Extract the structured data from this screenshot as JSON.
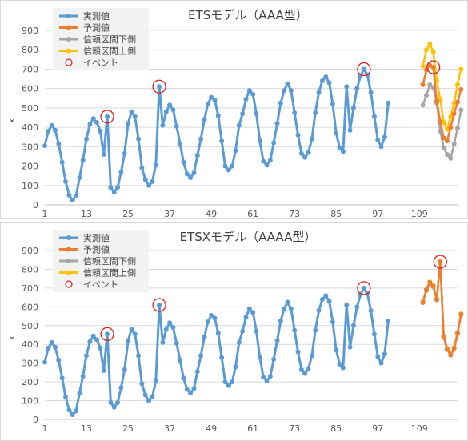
{
  "colors": {
    "actual": "#5b9bd5",
    "forecast": "#ed7d31",
    "lower": "#a5a5a5",
    "upper": "#ffc000",
    "event": "#e02020"
  },
  "legend_labels": [
    "実測値",
    "予測値",
    "信頼区間下側",
    "信頼区間上側",
    "イベント"
  ],
  "chart_data": [
    {
      "type": "line",
      "title": "ETSモデル（AAA型）",
      "xlabel": "",
      "ylabel": "x",
      "ylim": [
        0,
        900
      ],
      "yticks": [
        0,
        100,
        200,
        300,
        400,
        500,
        600,
        700,
        800,
        900
      ],
      "xticks": [
        1,
        13,
        25,
        37,
        49,
        61,
        73,
        85,
        97,
        109
      ],
      "xlim": [
        1,
        120
      ],
      "grid": true,
      "legend": "top-left",
      "series": [
        {
          "name": "実測値",
          "x_start": 1,
          "values": [
            305,
            380,
            410,
            385,
            315,
            220,
            120,
            50,
            25,
            45,
            140,
            230,
            340,
            415,
            445,
            425,
            380,
            260,
            455,
            90,
            65,
            90,
            170,
            265,
            420,
            480,
            455,
            340,
            190,
            130,
            100,
            120,
            205,
            610,
            410,
            480,
            515,
            490,
            405,
            315,
            220,
            160,
            140,
            165,
            255,
            340,
            440,
            520,
            555,
            540,
            460,
            330,
            200,
            180,
            200,
            280,
            410,
            470,
            545,
            590,
            570,
            470,
            330,
            225,
            205,
            230,
            320,
            420,
            525,
            590,
            625,
            590,
            475,
            360,
            265,
            245,
            270,
            340,
            475,
            580,
            640,
            660,
            630,
            520,
            370,
            295,
            275,
            610,
            385,
            500,
            600,
            665,
            700,
            670,
            580,
            455,
            335,
            300,
            350,
            525
          ]
        },
        {
          "name": "予測値",
          "x_start": 110,
          "values": [
            620,
            695,
            720,
            710,
            535,
            430,
            345,
            330,
            400,
            470,
            530,
            595
          ]
        },
        {
          "name": "信頼区間下側",
          "x_start": 110,
          "values": [
            515,
            565,
            620,
            605,
            525,
            380,
            295,
            260,
            240,
            315,
            395,
            490
          ]
        },
        {
          "name": "信頼区間上側",
          "x_start": 110,
          "values": [
            715,
            800,
            830,
            790,
            640,
            545,
            425,
            390,
            455,
            525,
            620,
            700
          ]
        }
      ],
      "events_x": [
        19,
        34,
        93,
        113
      ]
    },
    {
      "type": "line",
      "title": "ETSXモデル（AAAA型）",
      "xlabel": "",
      "ylabel": "x",
      "ylim": [
        0,
        900
      ],
      "yticks": [
        0,
        100,
        200,
        300,
        400,
        500,
        600,
        700,
        800,
        900
      ],
      "xticks": [
        1,
        13,
        25,
        37,
        49,
        61,
        73,
        85,
        97,
        109
      ],
      "xlim": [
        1,
        120
      ],
      "grid": true,
      "legend": "top-left",
      "series": [
        {
          "name": "実測値",
          "x_start": 1,
          "values": [
            305,
            380,
            410,
            385,
            315,
            220,
            120,
            50,
            25,
            45,
            140,
            230,
            340,
            415,
            445,
            425,
            380,
            260,
            455,
            90,
            65,
            90,
            170,
            265,
            420,
            480,
            455,
            340,
            190,
            130,
            100,
            120,
            205,
            610,
            410,
            480,
            515,
            490,
            405,
            315,
            220,
            160,
            140,
            165,
            255,
            340,
            440,
            520,
            555,
            540,
            460,
            330,
            200,
            180,
            200,
            280,
            410,
            470,
            545,
            590,
            570,
            470,
            330,
            225,
            205,
            230,
            320,
            420,
            525,
            590,
            625,
            590,
            475,
            360,
            265,
            245,
            270,
            340,
            475,
            580,
            640,
            660,
            630,
            520,
            370,
            295,
            275,
            610,
            385,
            500,
            600,
            665,
            700,
            670,
            580,
            455,
            335,
            300,
            350,
            525
          ]
        },
        {
          "name": "予測値",
          "x_start": 110,
          "values": [
            625,
            690,
            730,
            710,
            640,
            840,
            440,
            375,
            345,
            380,
            460,
            560
          ]
        },
        {
          "name": "信頼区間下側",
          "x_start": 110,
          "values": [
            622,
            687,
            727,
            707,
            637,
            837,
            437,
            372,
            342,
            377,
            457,
            557
          ]
        },
        {
          "name": "信頼区間上側",
          "x_start": 110,
          "values": [
            628,
            693,
            733,
            713,
            643,
            843,
            443,
            378,
            348,
            383,
            463,
            563
          ]
        }
      ],
      "events_x": [
        19,
        34,
        93,
        115
      ]
    }
  ]
}
